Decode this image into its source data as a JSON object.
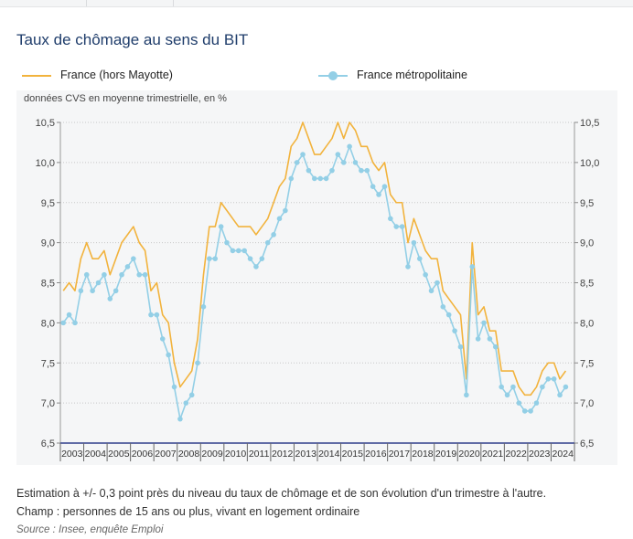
{
  "title": "Taux de chômage au sens du BIT",
  "subtitle": "données CVS en moyenne trimestrielle, en %",
  "legend": {
    "france": "France (hors Mayotte)",
    "metro": "France métropolitaine"
  },
  "notes": {
    "line1": "Estimation à +/- 0,3 point près du niveau du taux de chômage et de son évolution d'un trimestre à l'autre.",
    "line2": "Champ : personnes de 15 ans ou plus, vivant en logement ordinaire",
    "source": "Source : Insee, enquête Emploi"
  },
  "colors": {
    "france": "#f2b33d",
    "metro": "#93cfe6",
    "axis": "#303f8c",
    "grid": "#c8c8c8"
  },
  "chart_data": {
    "type": "line",
    "x_start": "2003 T1",
    "ylim": [
      6.5,
      10.5
    ],
    "yticks": [
      "6,5",
      "7,0",
      "7,5",
      "8,0",
      "8,5",
      "9,0",
      "9,5",
      "10,0",
      "10,5"
    ],
    "ytick_values": [
      6.5,
      7.0,
      7.5,
      8.0,
      8.5,
      9.0,
      9.5,
      10.0,
      10.5
    ],
    "years": [
      "2003",
      "2004",
      "2005",
      "2006",
      "2007",
      "2008",
      "2009",
      "2010",
      "2011",
      "2012",
      "2013",
      "2014",
      "2015",
      "2016",
      "2017",
      "2018",
      "2019",
      "2020",
      "2021",
      "2022",
      "2023",
      "2024"
    ],
    "grid": true,
    "series": [
      {
        "name": "France (hors Mayotte)",
        "markers": false,
        "values": [
          8.4,
          8.5,
          8.4,
          8.8,
          9.0,
          8.8,
          8.8,
          8.9,
          8.6,
          8.8,
          9.0,
          9.1,
          9.2,
          9.0,
          8.9,
          8.4,
          8.5,
          8.1,
          8.0,
          7.5,
          7.2,
          7.3,
          7.4,
          7.8,
          8.6,
          9.2,
          9.2,
          9.5,
          9.4,
          9.3,
          9.2,
          9.2,
          9.2,
          9.1,
          9.2,
          9.3,
          9.5,
          9.7,
          9.8,
          10.2,
          10.3,
          10.5,
          10.3,
          10.1,
          10.1,
          10.2,
          10.3,
          10.5,
          10.3,
          10.5,
          10.4,
          10.2,
          10.2,
          10.0,
          9.9,
          10.0,
          9.6,
          9.5,
          9.5,
          9.0,
          9.3,
          9.1,
          8.9,
          8.8,
          8.8,
          8.4,
          8.3,
          8.2,
          8.1,
          7.3,
          9.0,
          8.1,
          8.2,
          7.9,
          7.9,
          7.4,
          7.4,
          7.4,
          7.2,
          7.1,
          7.1,
          7.2,
          7.4,
          7.5,
          7.5,
          7.3,
          7.4
        ]
      },
      {
        "name": "France métropolitaine",
        "markers": true,
        "values": [
          8.0,
          8.1,
          8.0,
          8.4,
          8.6,
          8.4,
          8.5,
          8.6,
          8.3,
          8.4,
          8.6,
          8.7,
          8.8,
          8.6,
          8.6,
          8.1,
          8.1,
          7.8,
          7.6,
          7.2,
          6.8,
          7.0,
          7.1,
          7.5,
          8.2,
          8.8,
          8.8,
          9.2,
          9.0,
          8.9,
          8.9,
          8.9,
          8.8,
          8.7,
          8.8,
          9.0,
          9.1,
          9.3,
          9.4,
          9.8,
          10.0,
          10.1,
          9.9,
          9.8,
          9.8,
          9.8,
          9.9,
          10.1,
          10.0,
          10.2,
          10.0,
          9.9,
          9.9,
          9.7,
          9.6,
          9.7,
          9.3,
          9.2,
          9.2,
          8.7,
          9.0,
          8.8,
          8.6,
          8.4,
          8.5,
          8.2,
          8.1,
          7.9,
          7.7,
          7.1,
          8.7,
          7.8,
          8.0,
          7.8,
          7.7,
          7.2,
          7.1,
          7.2,
          7.0,
          6.9,
          6.9,
          7.0,
          7.2,
          7.3,
          7.3,
          7.1,
          7.2
        ]
      }
    ]
  }
}
